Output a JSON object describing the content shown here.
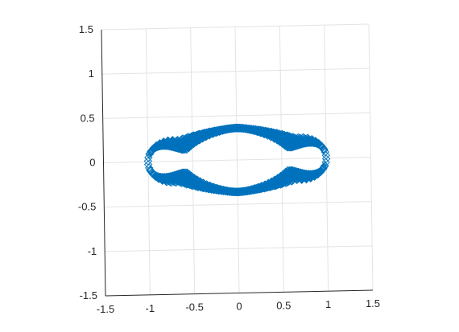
{
  "chart_data": {
    "type": "scatter",
    "title": "",
    "xlabel": "",
    "ylabel": "",
    "xlim": [
      -1.5,
      1.5
    ],
    "ylim": [
      -1.5,
      1.5
    ],
    "xticks": [
      "-1.5",
      "-1",
      "-0.5",
      "0",
      "0.5",
      "1",
      "1.5"
    ],
    "yticks": [
      "1.5",
      "1",
      "0.5",
      "0",
      "-0.5",
      "-1",
      "-1.5"
    ],
    "grid": true,
    "marker": "diamond",
    "colors": {
      "series": "#0072bd",
      "grid": "#e3e3e3",
      "axis": "#262626"
    },
    "series": [
      {
        "shape": "closed stadium-like loop swept around the origin, with pinched waist near x = 0",
        "x_range": [
          -1.0,
          1.0
        ],
        "y_range": [
          -0.36,
          0.36
        ],
        "center_gap": [
          -0.12,
          0.12
        ],
        "points_per_ring": 90,
        "rings": 18
      }
    ]
  }
}
